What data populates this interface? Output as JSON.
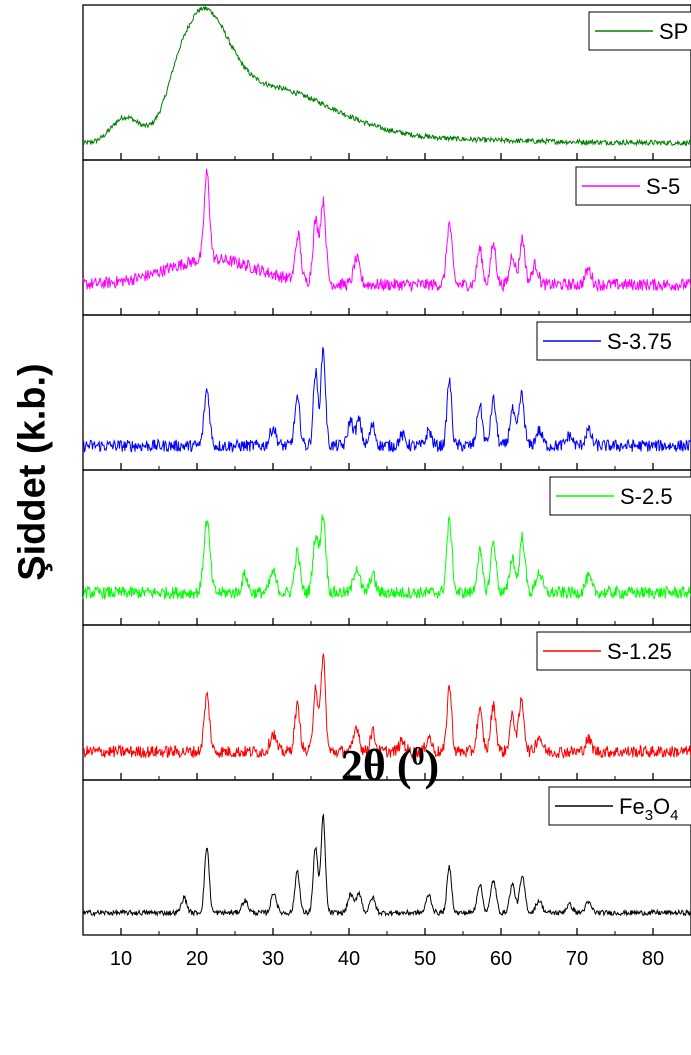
{
  "chart_data": {
    "type": "line",
    "layout": "stacked-panels",
    "xlim": [
      5,
      85
    ],
    "x_ticks": [
      10,
      20,
      30,
      40,
      50,
      60,
      70,
      80
    ],
    "xlabel": "2θ",
    "xlabel_unit": "0",
    "ylabel": "Şiddet (k.b.)",
    "series": [
      {
        "name": "SP",
        "color": "#008000",
        "profile": "amorphous",
        "peaks": [
          [
            20.8,
            1.0,
            3.2
          ],
          [
            10.5,
            0.28,
            1.8
          ],
          [
            30,
            0.45,
            8
          ]
        ],
        "baseline": 0.12
      },
      {
        "name": "S-5",
        "color": "#ff00ff",
        "profile": "crystalline",
        "peaks": [
          [
            21.3,
            0.85,
            0.35
          ],
          [
            33.3,
            0.45,
            0.35
          ],
          [
            35.6,
            0.6,
            0.35
          ],
          [
            36.6,
            0.8,
            0.35
          ],
          [
            41.0,
            0.25,
            0.4
          ],
          [
            53.2,
            0.6,
            0.35
          ],
          [
            57.2,
            0.35,
            0.35
          ],
          [
            59.0,
            0.4,
            0.35
          ],
          [
            61.5,
            0.3,
            0.35
          ],
          [
            62.8,
            0.45,
            0.35
          ],
          [
            64.5,
            0.2,
            0.4
          ],
          [
            71.5,
            0.15,
            0.4
          ]
        ],
        "baseline": 0.2,
        "hump": [
          22,
          0.25,
          6
        ]
      },
      {
        "name": "S-3.75",
        "color": "#0000ff",
        "profile": "crystalline",
        "peaks": [
          [
            21.3,
            0.55,
            0.35
          ],
          [
            30.0,
            0.18,
            0.4
          ],
          [
            33.2,
            0.45,
            0.35
          ],
          [
            35.6,
            0.72,
            0.3
          ],
          [
            36.6,
            0.95,
            0.3
          ],
          [
            40.2,
            0.25,
            0.35
          ],
          [
            41.3,
            0.25,
            0.35
          ],
          [
            43.1,
            0.2,
            0.35
          ],
          [
            47.0,
            0.1,
            0.4
          ],
          [
            50.5,
            0.15,
            0.35
          ],
          [
            53.2,
            0.65,
            0.3
          ],
          [
            57.2,
            0.4,
            0.35
          ],
          [
            59.0,
            0.45,
            0.35
          ],
          [
            61.5,
            0.35,
            0.35
          ],
          [
            62.7,
            0.5,
            0.35
          ],
          [
            65.0,
            0.15,
            0.4
          ],
          [
            69.0,
            0.1,
            0.4
          ],
          [
            71.5,
            0.15,
            0.4
          ]
        ],
        "baseline": 0.14
      },
      {
        "name": "S-2.5",
        "color": "#00ff00",
        "profile": "crystalline",
        "peaks": [
          [
            21.3,
            0.7,
            0.4
          ],
          [
            26.3,
            0.18,
            0.35
          ],
          [
            30.0,
            0.2,
            0.4
          ],
          [
            33.2,
            0.4,
            0.35
          ],
          [
            35.6,
            0.55,
            0.35
          ],
          [
            36.6,
            0.75,
            0.35
          ],
          [
            41.0,
            0.25,
            0.4
          ],
          [
            43.1,
            0.18,
            0.35
          ],
          [
            53.2,
            0.7,
            0.35
          ],
          [
            57.2,
            0.4,
            0.35
          ],
          [
            59.0,
            0.5,
            0.35
          ],
          [
            61.5,
            0.35,
            0.35
          ],
          [
            62.8,
            0.55,
            0.35
          ],
          [
            65.0,
            0.2,
            0.4
          ],
          [
            71.5,
            0.15,
            0.4
          ]
        ],
        "baseline": 0.22
      },
      {
        "name": "S-1.25",
        "color": "#ff0000",
        "profile": "crystalline",
        "peaks": [
          [
            21.3,
            0.55,
            0.35
          ],
          [
            30.0,
            0.18,
            0.4
          ],
          [
            33.2,
            0.45,
            0.35
          ],
          [
            35.6,
            0.65,
            0.3
          ],
          [
            36.6,
            0.95,
            0.3
          ],
          [
            41.0,
            0.25,
            0.35
          ],
          [
            43.1,
            0.2,
            0.35
          ],
          [
            47.0,
            0.1,
            0.4
          ],
          [
            50.5,
            0.15,
            0.35
          ],
          [
            53.2,
            0.65,
            0.3
          ],
          [
            57.2,
            0.4,
            0.35
          ],
          [
            59.0,
            0.45,
            0.35
          ],
          [
            61.5,
            0.35,
            0.35
          ],
          [
            62.7,
            0.5,
            0.35
          ],
          [
            65.0,
            0.15,
            0.4
          ],
          [
            71.5,
            0.12,
            0.4
          ]
        ],
        "baseline": 0.18
      },
      {
        "name": "Fe3O4",
        "color": "#000000",
        "profile": "crystalline",
        "peaks": [
          [
            18.3,
            0.15,
            0.35
          ],
          [
            21.3,
            0.65,
            0.3
          ],
          [
            26.3,
            0.12,
            0.4
          ],
          [
            30.1,
            0.2,
            0.35
          ],
          [
            33.2,
            0.42,
            0.3
          ],
          [
            35.6,
            0.65,
            0.3
          ],
          [
            36.6,
            0.95,
            0.28
          ],
          [
            40.2,
            0.18,
            0.35
          ],
          [
            41.3,
            0.2,
            0.35
          ],
          [
            43.1,
            0.15,
            0.35
          ],
          [
            50.5,
            0.18,
            0.35
          ],
          [
            53.2,
            0.45,
            0.3
          ],
          [
            57.2,
            0.28,
            0.35
          ],
          [
            59.0,
            0.32,
            0.35
          ],
          [
            61.5,
            0.28,
            0.35
          ],
          [
            62.8,
            0.35,
            0.35
          ],
          [
            65.0,
            0.12,
            0.4
          ],
          [
            69.0,
            0.08,
            0.4
          ],
          [
            71.5,
            0.1,
            0.4
          ]
        ],
        "baseline": 0.12
      }
    ]
  },
  "legend_labels": [
    "SP",
    "S-5",
    "S-3.75",
    "S-2.5",
    "S-1.25",
    "Fe3O4"
  ]
}
